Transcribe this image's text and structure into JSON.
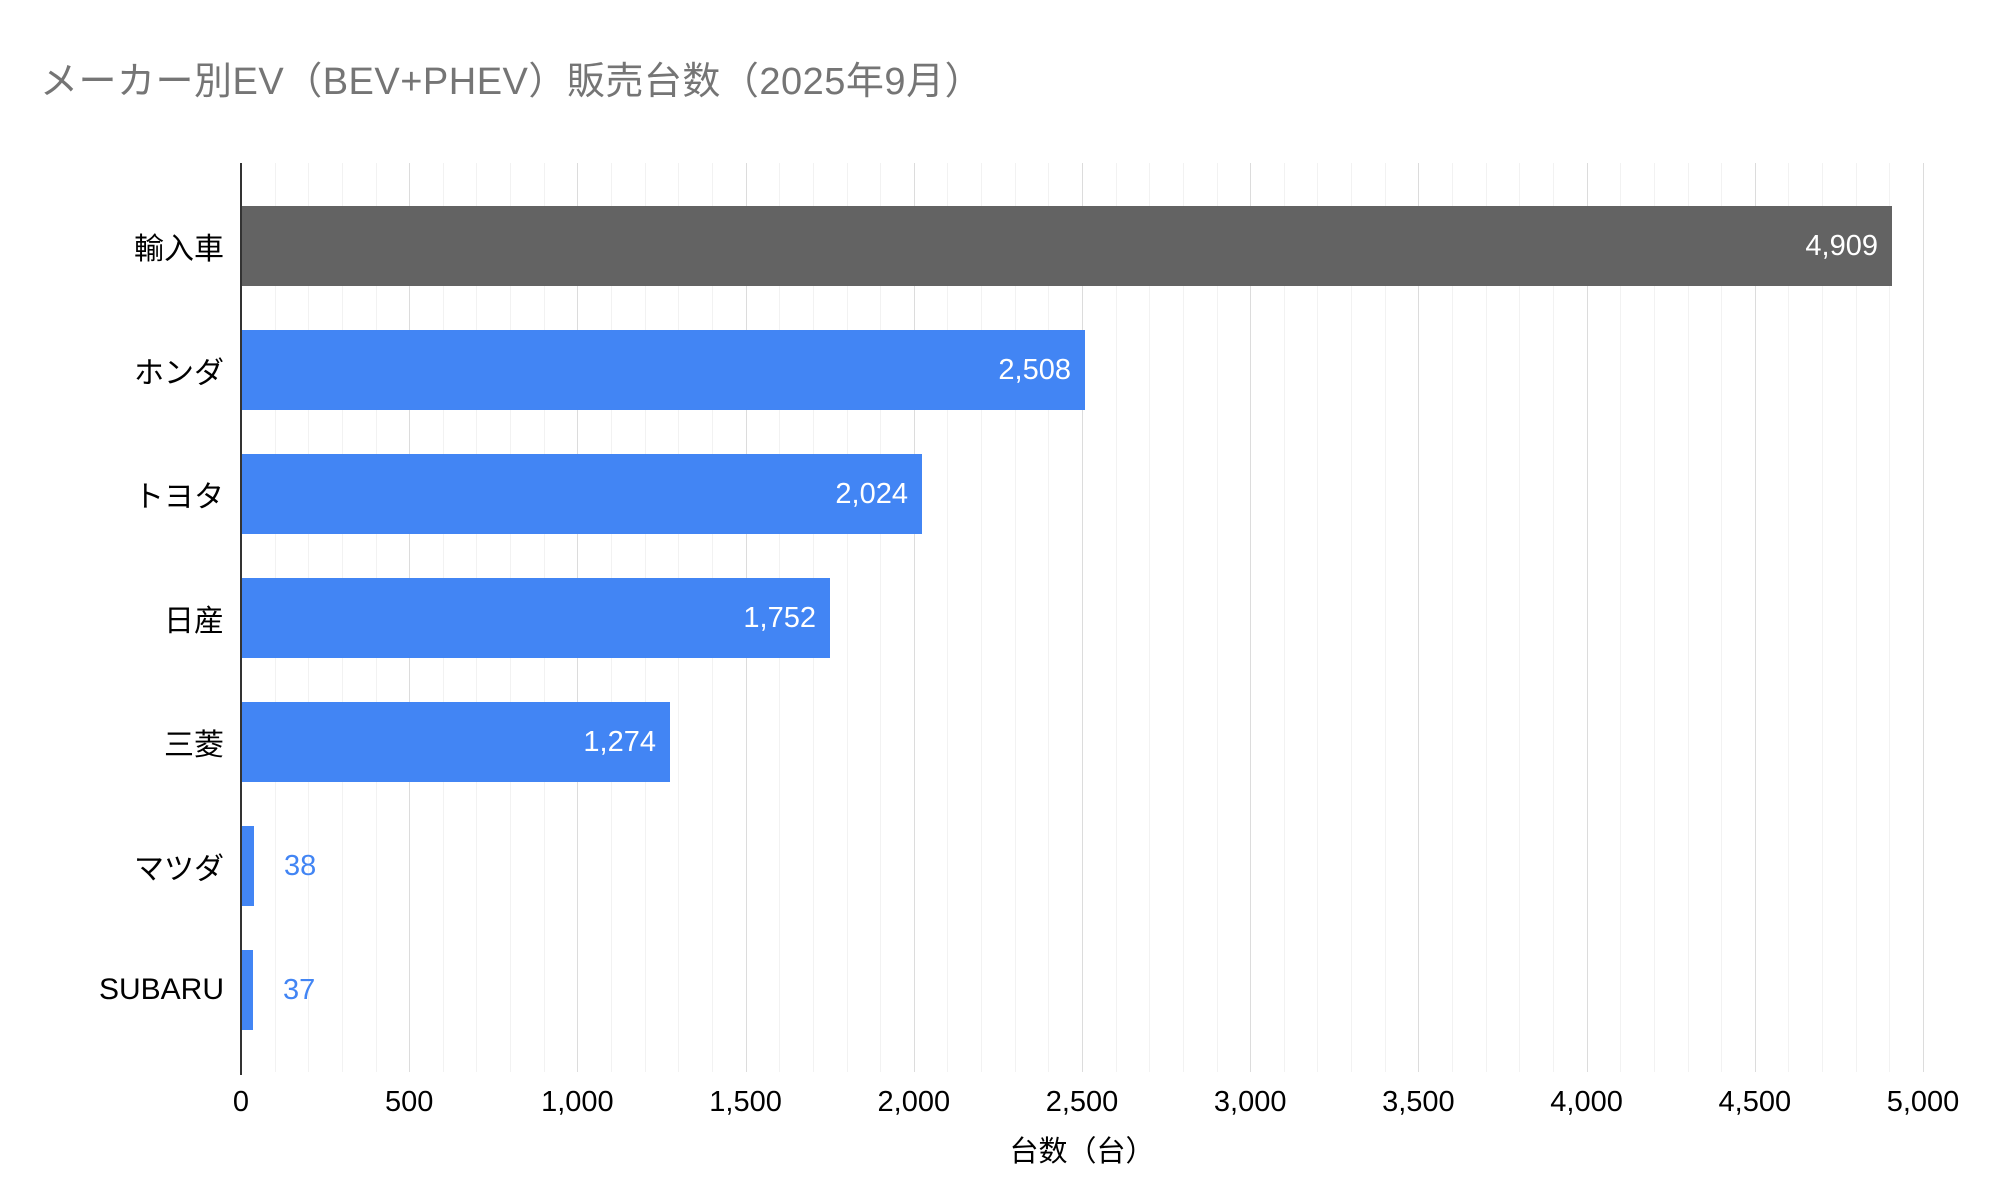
{
  "title": "メーカー別EV（BEV+PHEV）販売台数（2025年9月）",
  "chart_data": {
    "type": "bar",
    "orientation": "horizontal",
    "title": "メーカー別EV（BEV+PHEV）販売台数（2025年9月）",
    "categories": [
      "輸入車",
      "ホンダ",
      "トヨタ",
      "日産",
      "三菱",
      "マツダ",
      "SUBARU"
    ],
    "values": [
      4909,
      2508,
      2024,
      1752,
      1274,
      38,
      37
    ],
    "value_labels": [
      "4,909",
      "2,508",
      "2,024",
      "1,752",
      "1,274",
      "38",
      "37"
    ],
    "bar_colors": [
      "#636363",
      "#4285F4",
      "#4285F4",
      "#4285F4",
      "#4285F4",
      "#4285F4",
      "#4285F4"
    ],
    "xlabel": "台数（台）",
    "ylabel": "",
    "xlim": [
      0,
      5000
    ],
    "x_major_step": 500,
    "x_minor_step": 100,
    "x_tick_labels": [
      "0",
      "500",
      "1,000",
      "1,500",
      "2,000",
      "2,500",
      "3,000",
      "3,500",
      "4,000",
      "4,500",
      "5,000"
    ],
    "grid": true,
    "legend_position": "none"
  },
  "colors": {
    "background": "#FFFFFF",
    "title_text": "#757575",
    "bar_blue": "#4285F4",
    "bar_gray": "#636363",
    "value_label_inside": "#FFFFFF",
    "value_label_outside": "#4285F4",
    "category_label": "#000000",
    "tick_label": "#000000",
    "axis_line": "#333333",
    "gridline_major": "#DCDCDC",
    "gridline_minor": "#F2F2F2"
  }
}
